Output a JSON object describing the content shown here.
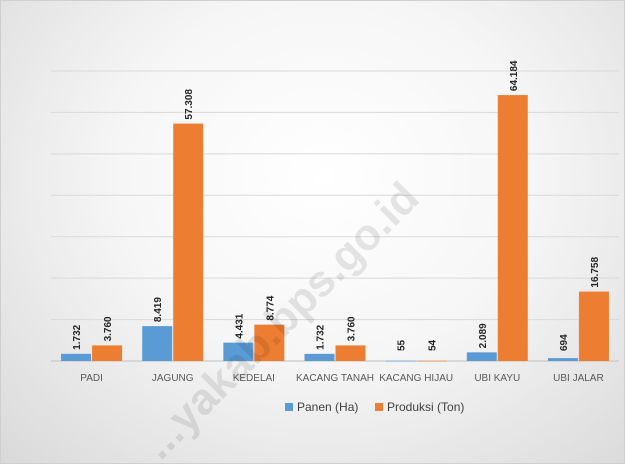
{
  "chart_data": {
    "type": "bar",
    "title": "",
    "xlabel": "",
    "ylabel": "",
    "categories": [
      "PADI",
      "JAGUNG",
      "KEDELAI",
      "KACANG TANAH",
      "KACANG HIJAU",
      "UBI KAYU",
      "UBI JALAR"
    ],
    "series": [
      {
        "name": "Panen (Ha)",
        "values": [
          1732,
          8419,
          4431,
          1732,
          55,
          2089,
          694
        ],
        "labels": [
          "1.732",
          "8.419",
          "4.431",
          "1.732",
          "55",
          "2.089",
          "694"
        ],
        "color": "#5b9bd5"
      },
      {
        "name": "Produksi (Ton)",
        "values": [
          3760,
          57308,
          8774,
          3760,
          54,
          64184,
          16758
        ],
        "labels": [
          "3.760",
          "57.308",
          "8.774",
          "3.760",
          "54",
          "64.184",
          "16.758"
        ],
        "color": "#ed7d31"
      }
    ],
    "ylim": [
      0,
      70000
    ],
    "grid": true,
    "legend_position": "bottom"
  },
  "watermark": "...yakab.bps.go.id"
}
